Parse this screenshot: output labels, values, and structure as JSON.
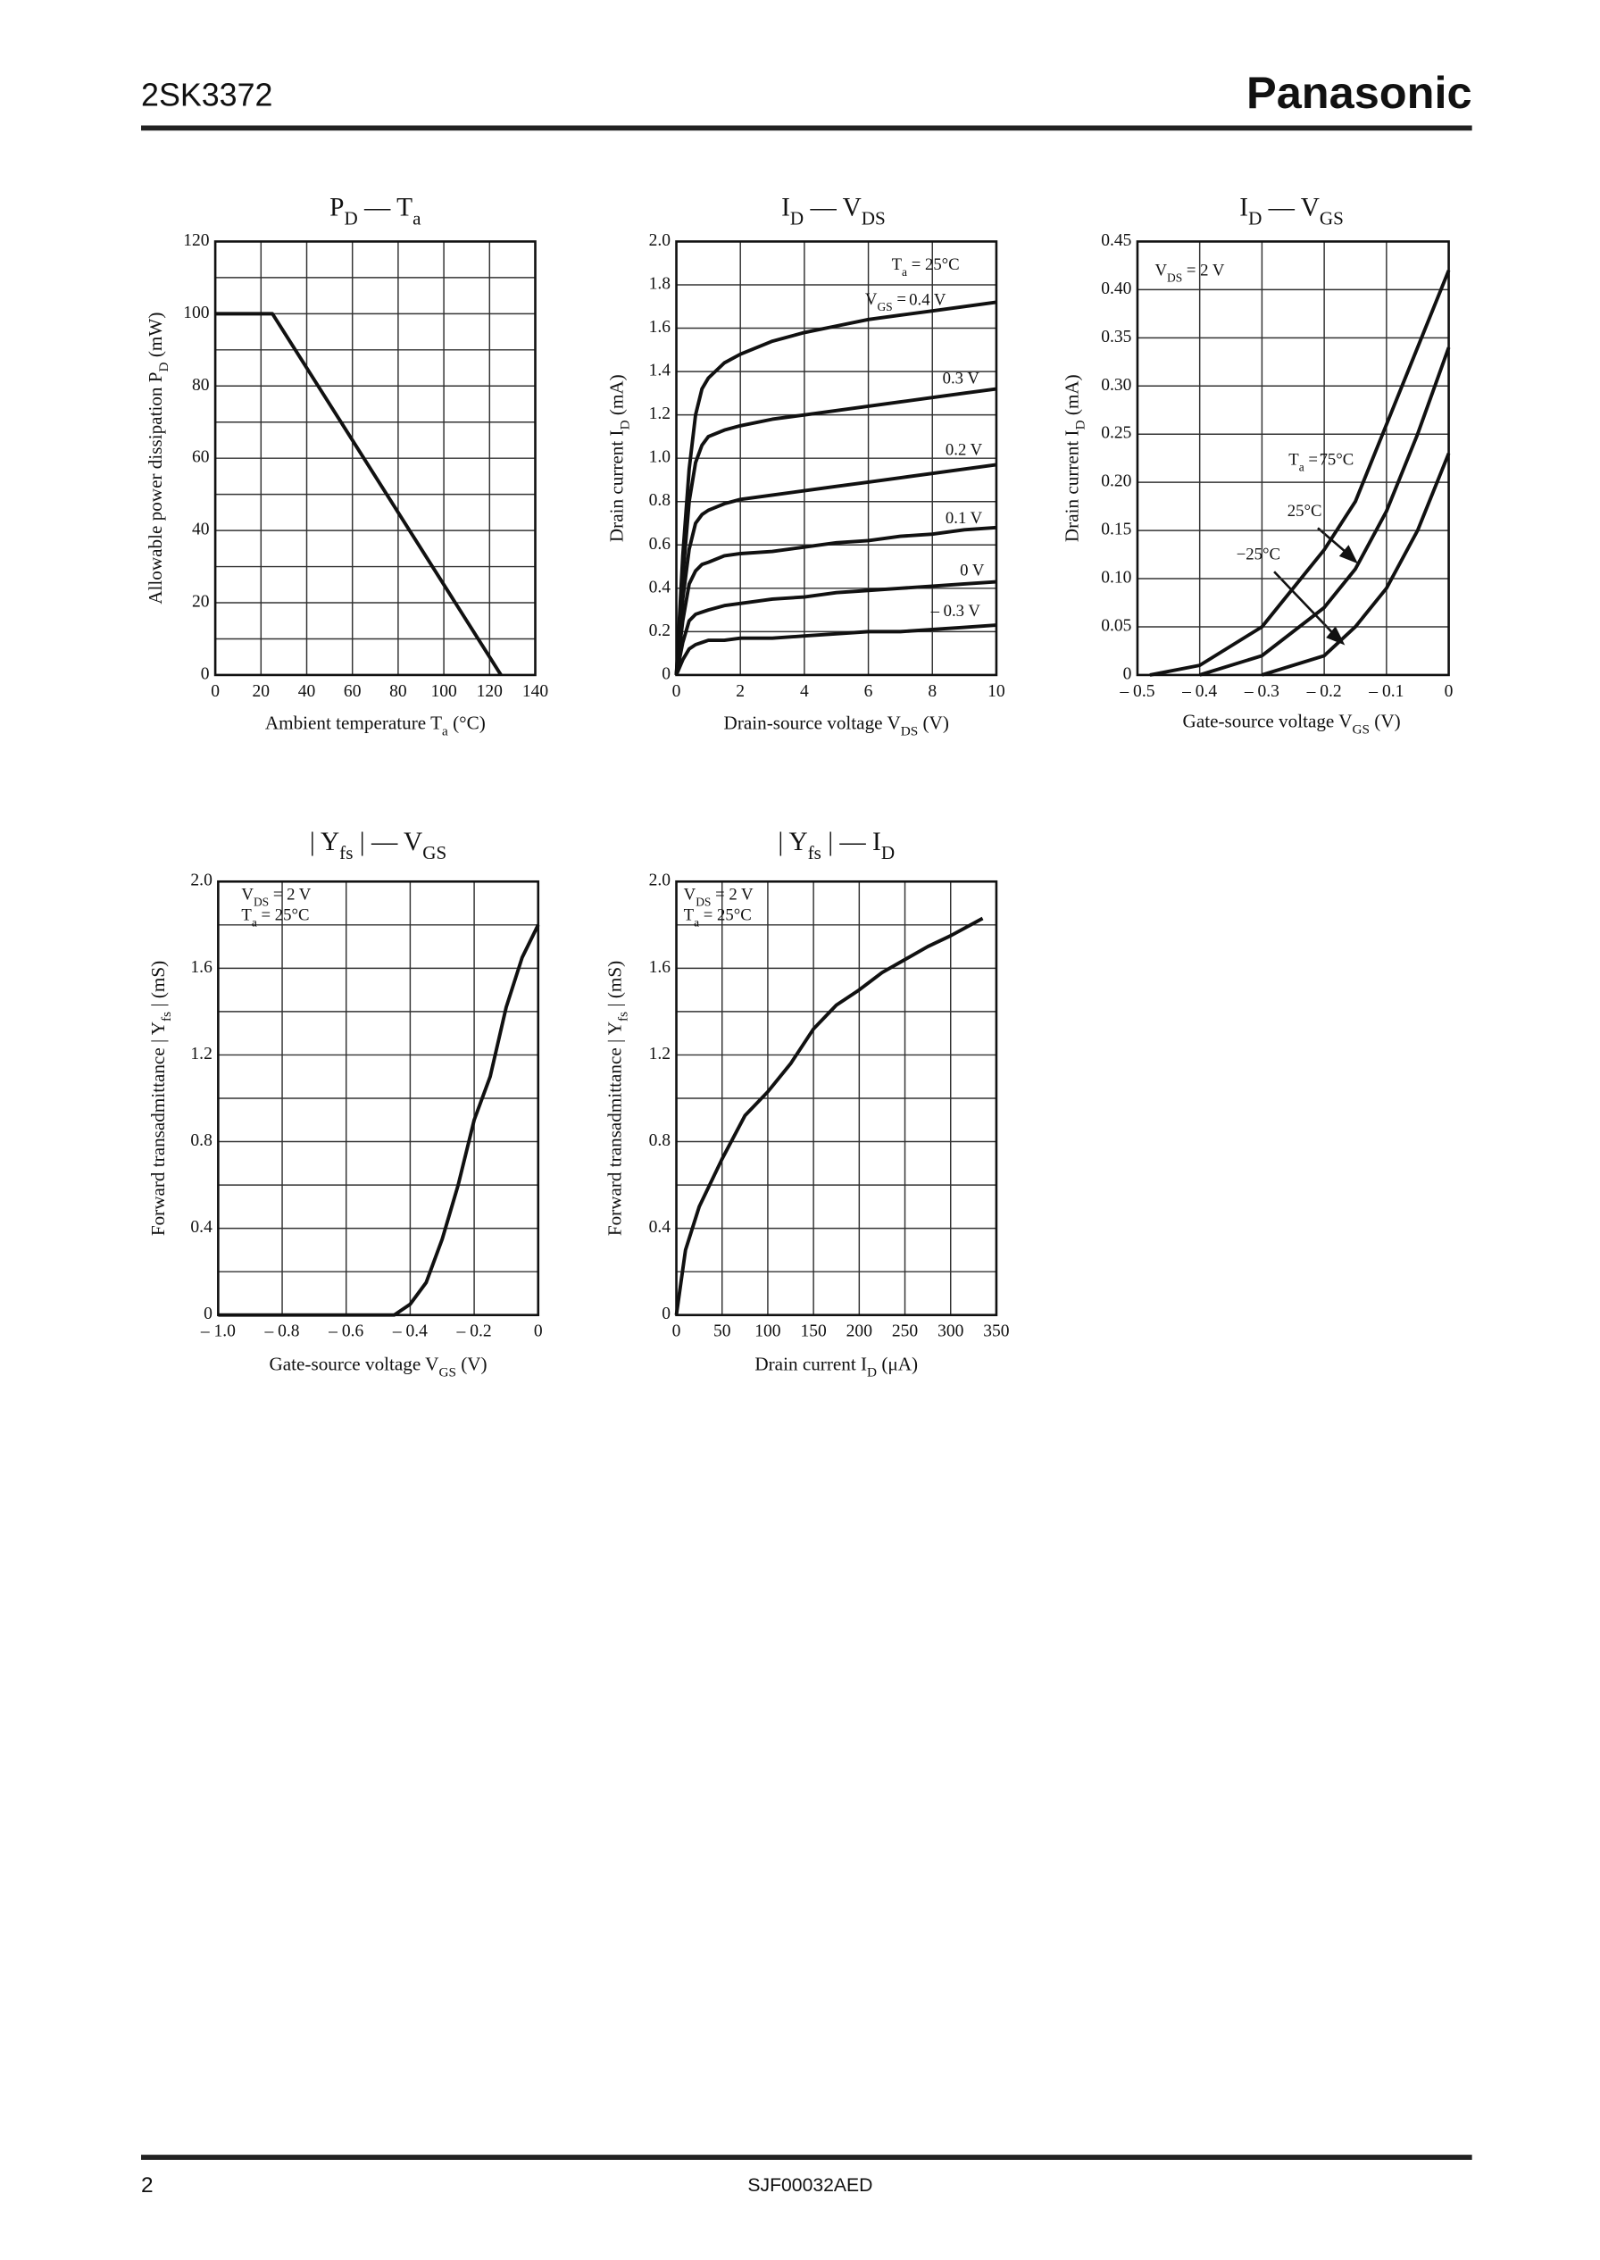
{
  "header": {
    "part_number": "2SK3372",
    "brand": "Panasonic"
  },
  "footer": {
    "page": "2",
    "doc_id": "SJF00032AED"
  },
  "chart_data": [
    {
      "type": "line",
      "title": [
        "P",
        "D",
        " — T",
        "a"
      ],
      "xlabel": [
        "Ambient temperature  T",
        "a",
        "  (°C)"
      ],
      "ylabel": [
        "Allowable power dissipation  P",
        "D",
        "  (mW)"
      ],
      "xlim": [
        0,
        140
      ],
      "ylim": [
        0,
        120
      ],
      "xticks": [
        0,
        20,
        40,
        60,
        80,
        100,
        120,
        140
      ],
      "yticks": [
        0,
        20,
        40,
        60,
        80,
        100,
        120
      ],
      "ygrid": [
        10,
        30,
        50,
        70,
        90,
        110
      ],
      "grid": true,
      "x": [
        0,
        25,
        125
      ],
      "series": [
        {
          "color": "#111111",
          "values": [
            100,
            100,
            0
          ]
        }
      ]
    },
    {
      "type": "line",
      "title": [
        "I",
        "D",
        " — V",
        "DS"
      ],
      "xlabel": [
        "Drain-source voltage  V",
        "DS",
        "  (V)"
      ],
      "ylabel": [
        "Drain current  I",
        "D",
        "  (mA)"
      ],
      "xlim": [
        0,
        10
      ],
      "ylim": [
        0,
        2
      ],
      "xticks": [
        0,
        2,
        4,
        6,
        8,
        10
      ],
      "yticks": [
        0,
        0.2,
        0.4,
        0.6,
        0.8,
        {
          "value": 1,
          "label": "1.0"
        },
        1.2,
        1.4,
        1.6,
        1.8,
        {
          "value": 2,
          "label": "2.0"
        }
      ],
      "grid": true,
      "annotations": [
        [
          "T",
          "a",
          " = 25°C"
        ],
        [
          "V",
          "GS",
          " = "
        ]
      ],
      "x": [
        0,
        0.2,
        0.4,
        0.6,
        0.8,
        1,
        1.5,
        2,
        3,
        4,
        5,
        6,
        7,
        8,
        9,
        10
      ],
      "series": [
        {
          "name": "0.4 V",
          "color": "#111111",
          "values": [
            0,
            0.55,
            0.95,
            1.2,
            1.32,
            1.37,
            1.44,
            1.48,
            1.54,
            1.58,
            1.61,
            1.64,
            1.66,
            1.68,
            1.7,
            1.72
          ]
        },
        {
          "name": "0.3 V",
          "color": "#111111",
          "values": [
            0,
            0.45,
            0.8,
            0.98,
            1.06,
            1.1,
            1.13,
            1.15,
            1.18,
            1.2,
            1.22,
            1.24,
            1.26,
            1.28,
            1.3,
            1.32
          ]
        },
        {
          "name": "0.2 V",
          "color": "#111111",
          "values": [
            0,
            0.35,
            0.58,
            0.7,
            0.74,
            0.76,
            0.79,
            0.81,
            0.83,
            0.85,
            0.87,
            0.89,
            0.91,
            0.93,
            0.95,
            0.97
          ]
        },
        {
          "name": "0.1 V",
          "color": "#111111",
          "values": [
            0,
            0.25,
            0.42,
            0.48,
            0.51,
            0.52,
            0.55,
            0.56,
            0.57,
            0.59,
            0.61,
            0.62,
            0.64,
            0.65,
            0.67,
            0.68
          ]
        },
        {
          "name": "0 V",
          "color": "#111111",
          "values": [
            0,
            0.15,
            0.25,
            0.28,
            0.29,
            0.3,
            0.32,
            0.33,
            0.35,
            0.36,
            0.38,
            0.39,
            0.4,
            0.41,
            0.42,
            0.43
          ]
        },
        {
          "name": "– 0.3 V",
          "color": "#111111",
          "values": [
            0,
            0.07,
            0.12,
            0.14,
            0.15,
            0.16,
            0.16,
            0.17,
            0.17,
            0.18,
            0.19,
            0.2,
            0.2,
            0.21,
            0.22,
            0.23
          ]
        }
      ]
    },
    {
      "type": "line",
      "title": [
        "I",
        "D",
        " — V",
        "GS"
      ],
      "xlabel": [
        "Gate-source voltage  V",
        "GS",
        "  (V)"
      ],
      "ylabel": [
        "Drain current  I",
        "D",
        "  (mA)"
      ],
      "xlim": [
        -0.5,
        0
      ],
      "ylim": [
        0,
        0.45
      ],
      "xticks": [
        {
          "value": -0.5,
          "label": "– 0.5"
        },
        {
          "value": -0.4,
          "label": "– 0.4"
        },
        {
          "value": -0.3,
          "label": "– 0.3"
        },
        {
          "value": -0.2,
          "label": "– 0.2"
        },
        {
          "value": -0.1,
          "label": "– 0.1"
        },
        0
      ],
      "yticks": [
        0,
        0.05,
        {
          "value": 0.1,
          "label": "0.10"
        },
        0.15,
        {
          "value": 0.2,
          "label": "0.20"
        },
        0.25,
        {
          "value": 0.3,
          "label": "0.30"
        },
        0.35,
        {
          "value": 0.4,
          "label": "0.40"
        },
        0.45
      ],
      "grid": true,
      "annotations": [
        [
          "V",
          "DS",
          " = 2 V"
        ],
        [
          "T",
          "a",
          " = "
        ]
      ],
      "series": [
        {
          "name": "75°C",
          "color": "#111111",
          "x": [
            -0.48,
            -0.4,
            -0.3,
            -0.2,
            -0.15,
            -0.1,
            -0.05,
            0
          ],
          "values": [
            0,
            0.01,
            0.05,
            0.13,
            0.18,
            0.26,
            0.34,
            0.42
          ]
        },
        {
          "name": "25°C",
          "color": "#111111",
          "x": [
            -0.4,
            -0.3,
            -0.2,
            -0.15,
            -0.1,
            -0.05,
            0
          ],
          "values": [
            0,
            0.02,
            0.07,
            0.11,
            0.17,
            0.25,
            0.34
          ]
        },
        {
          "name": "−25°C",
          "color": "#111111",
          "x": [
            -0.3,
            -0.2,
            -0.15,
            -0.1,
            -0.05,
            0
          ],
          "values": [
            0,
            0.02,
            0.05,
            0.09,
            0.15,
            0.23
          ]
        }
      ]
    },
    {
      "type": "line",
      "title": [
        "| Y",
        "fs",
        " | — V",
        "GS"
      ],
      "xlabel": [
        "Gate-source voltage  V",
        "GS",
        "  (V)"
      ],
      "ylabel": [
        "Forward transadmittance  | Y",
        "fs",
        " |  (mS)"
      ],
      "xlim": [
        -1,
        0
      ],
      "ylim": [
        0,
        2
      ],
      "xticks": [
        {
          "value": -1,
          "label": "– 1.0"
        },
        {
          "value": -0.8,
          "label": "– 0.8"
        },
        {
          "value": -0.6,
          "label": "– 0.6"
        },
        {
          "value": -0.4,
          "label": "– 0.4"
        },
        {
          "value": -0.2,
          "label": "– 0.2"
        },
        0
      ],
      "yticks": [
        0,
        0.4,
        0.8,
        1.2,
        1.6,
        {
          "value": 2,
          "label": "2.0"
        }
      ],
      "ygrid": [
        0.2,
        0.6,
        1,
        1.4,
        1.8
      ],
      "grid": true,
      "annotations": [
        [
          "V",
          "DS",
          " = 2 V"
        ],
        [
          "T",
          "a",
          " = 25°C"
        ]
      ],
      "x": [
        -1,
        -0.45,
        -0.4,
        -0.35,
        -0.3,
        -0.25,
        -0.2,
        -0.15,
        -0.1,
        -0.05,
        0
      ],
      "series": [
        {
          "color": "#111111",
          "values": [
            0,
            0,
            0.05,
            0.15,
            0.35,
            0.6,
            0.9,
            1.1,
            1.42,
            1.65,
            1.8
          ]
        }
      ]
    },
    {
      "type": "line",
      "title": [
        "| Y",
        "fs",
        " | — I",
        "D"
      ],
      "xlabel": [
        "Drain current  I",
        "D",
        "  (μA)"
      ],
      "ylabel": [
        "Forward transadmittance  | Y",
        "fs",
        " |  (mS)"
      ],
      "xlim": [
        0,
        350
      ],
      "ylim": [
        0,
        2
      ],
      "xticks": [
        0,
        50,
        100,
        150,
        200,
        250,
        300,
        350
      ],
      "yticks": [
        0,
        0.4,
        0.8,
        1.2,
        1.6,
        {
          "value": 2,
          "label": "2.0"
        }
      ],
      "ygrid": [
        0.2,
        0.6,
        1,
        1.4,
        1.8
      ],
      "grid": true,
      "annotations": [
        [
          "V",
          "DS",
          " = 2 V"
        ],
        [
          "T",
          "a",
          " = 25°C"
        ]
      ],
      "x": [
        0,
        10,
        25,
        50,
        75,
        100,
        125,
        150,
        175,
        200,
        225,
        250,
        275,
        300,
        335
      ],
      "series": [
        {
          "color": "#111111",
          "values": [
            0,
            0.3,
            0.5,
            0.72,
            0.92,
            1.03,
            1.16,
            1.32,
            1.43,
            1.5,
            1.58,
            1.64,
            1.7,
            1.75,
            1.83
          ]
        }
      ]
    }
  ]
}
